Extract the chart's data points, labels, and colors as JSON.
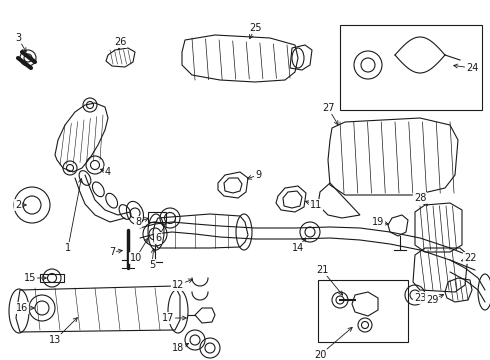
{
  "bg_color": "#ffffff",
  "line_color": "#1a1a1a",
  "lw": 0.8,
  "figsize": [
    4.9,
    3.6
  ],
  "dpi": 100
}
